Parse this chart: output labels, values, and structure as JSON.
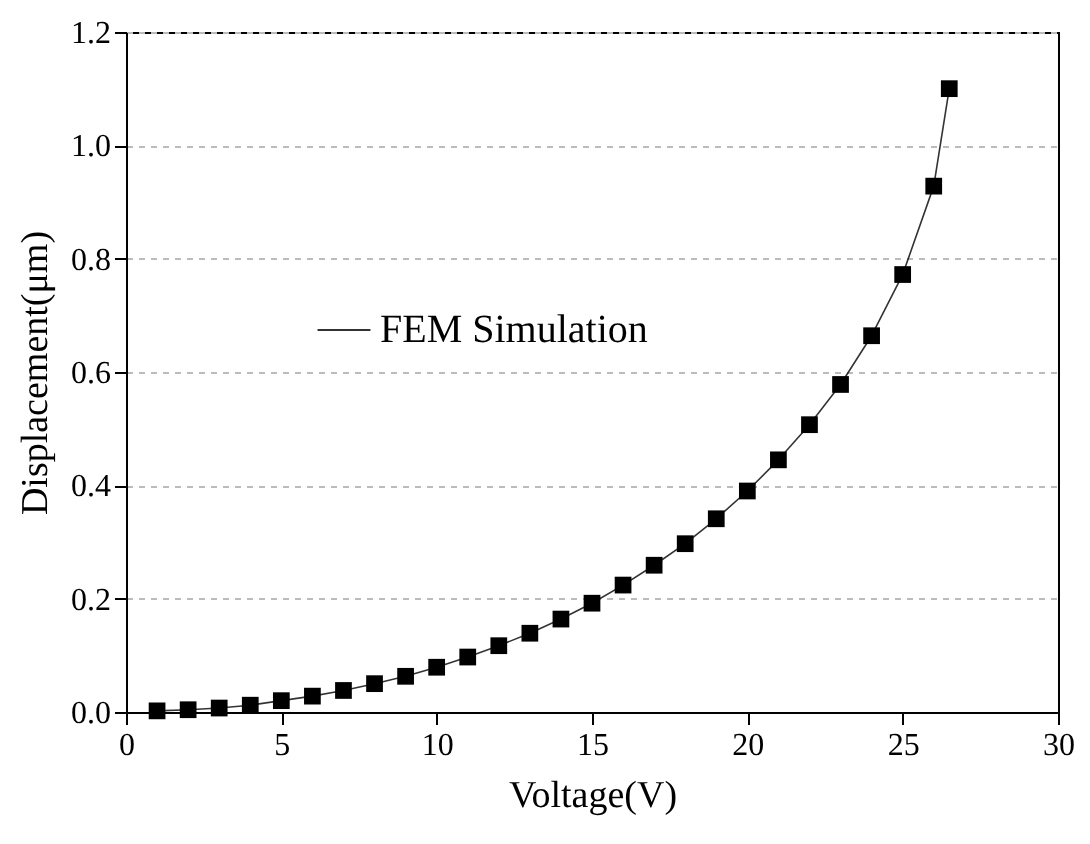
{
  "chart_data": {
    "type": "line",
    "xlabel": "Voltage(V)",
    "ylabel": "Displacement(μm)",
    "x": [
      1,
      2,
      3,
      4,
      5,
      6,
      7,
      8,
      9,
      10,
      11,
      12,
      13,
      14,
      15,
      16,
      17,
      18,
      19,
      20,
      21,
      22,
      23,
      24,
      25,
      26,
      26.5
    ],
    "series": [
      {
        "name": "FEM Simulation",
        "color": "#000000",
        "values": [
          0.002,
          0.004,
          0.007,
          0.012,
          0.02,
          0.028,
          0.038,
          0.05,
          0.063,
          0.079,
          0.097,
          0.117,
          0.139,
          0.164,
          0.192,
          0.224,
          0.259,
          0.297,
          0.341,
          0.39,
          0.445,
          0.507,
          0.578,
          0.664,
          0.772,
          0.928,
          1.1
        ]
      }
    ],
    "xlim": [
      0,
      30
    ],
    "xticks": [
      0,
      5,
      10,
      15,
      20,
      25,
      30
    ],
    "ylim": [
      0,
      1.2
    ],
    "yticks": [
      {
        "value": 0,
        "label": "0.0"
      },
      {
        "value": 0.2,
        "label": "0.2"
      },
      {
        "value": 0.4,
        "label": "0.4"
      },
      {
        "value": 0.6,
        "label": "0.6"
      },
      {
        "value": 0.8,
        "label": "0.8"
      },
      {
        "value": 1,
        "label": "1.0"
      },
      {
        "value": 1.2,
        "label": "1.2"
      }
    ],
    "grid": "y",
    "legend": "left",
    "marker": "square",
    "line_style": "solid"
  }
}
